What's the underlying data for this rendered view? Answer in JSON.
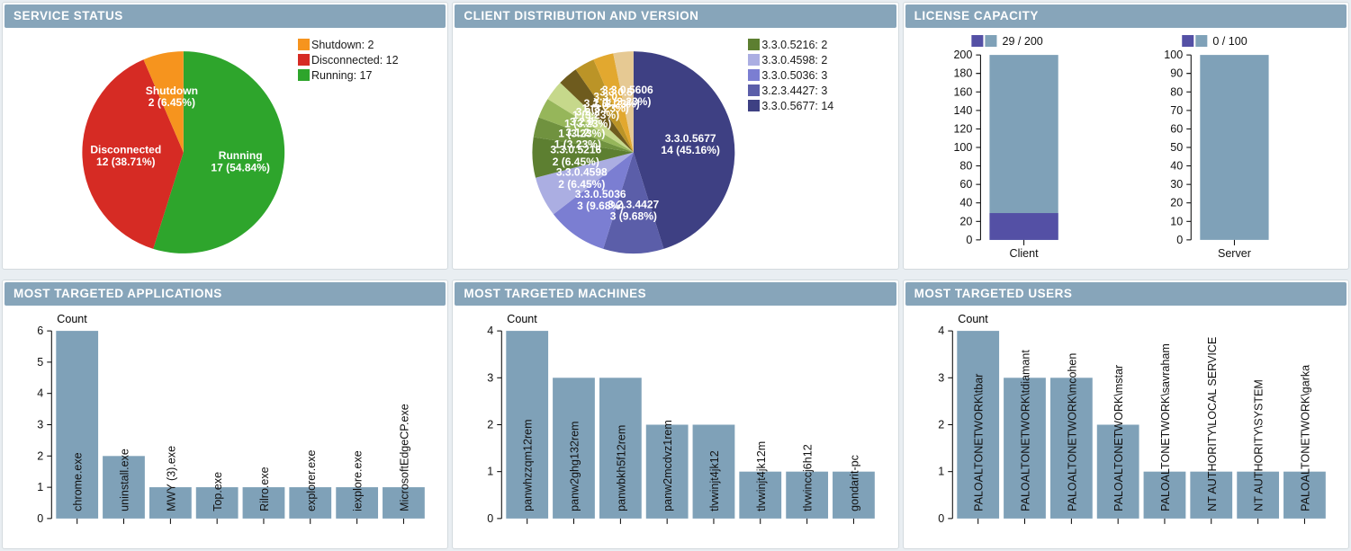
{
  "colors": {
    "header_bg": "#87a5ba",
    "steel_bar": "#7fa1b8",
    "used_purple": "#5450a5",
    "running_green": "#2ea52c",
    "disconnected_red": "#d62b24",
    "shutdown_orange": "#f6941e"
  },
  "chart_data": [
    {
      "panel": "service-status",
      "type": "pie",
      "title": "SERVICE STATUS",
      "legend_position": "top-right",
      "slices": [
        {
          "label": "Running",
          "value": 17,
          "pct": "54.84%",
          "color": "#2ea52c"
        },
        {
          "label": "Disconnected",
          "value": 12,
          "pct": "38.71%",
          "color": "#d62b24"
        },
        {
          "label": "Shutdown",
          "value": 2,
          "pct": "6.45%",
          "color": "#f6941e"
        }
      ],
      "legend": [
        {
          "label": "Shutdown",
          "value": 2,
          "color": "#f6941e"
        },
        {
          "label": "Disconnected",
          "value": 12,
          "color": "#d62b24"
        },
        {
          "label": "Running",
          "value": 17,
          "color": "#2ea52c"
        }
      ]
    },
    {
      "panel": "client-distribution-and-version",
      "type": "pie",
      "title": "CLIENT DISTRIBUTION AND VERSION",
      "legend_position": "top-right",
      "slices": [
        {
          "label": "3.3.0.5677",
          "value": 14,
          "pct": "45.16%",
          "color": "#3e4083"
        },
        {
          "label": "3.2.3.4427",
          "value": 3,
          "pct": "9.68%",
          "color": "#5b5ea9"
        },
        {
          "label": "3.3.0.5036",
          "value": 3,
          "pct": "9.68%",
          "color": "#7b7ed2"
        },
        {
          "label": "3.3.0.4598",
          "value": 2,
          "pct": "6.45%",
          "color": "#abaee2"
        },
        {
          "label": "3.3.0.5216",
          "value": 2,
          "pct": "6.45%",
          "color": "#5d7f31"
        },
        {
          "label": "3.1.2",
          "value": 1,
          "pct": "3.23%",
          "color": "#70923f"
        },
        {
          "label": "3.2.0",
          "value": 1,
          "pct": "3.23%",
          "color": "#96b65a"
        },
        {
          "label": "3.2.2",
          "value": 1,
          "pct": "3.23%",
          "color": "#c6d88b"
        },
        {
          "label": "3.2.3",
          "value": 1,
          "pct": "3.23%",
          "color": "#6e5b1e"
        },
        {
          "label": "3.3.0",
          "value": 1,
          "pct": "3.23%",
          "color": "#bb9427"
        },
        {
          "label": "3.3.0.5",
          "value": 1,
          "pct": "3.23%",
          "color": "#e2a82f"
        },
        {
          "label": "3.3.0.5606",
          "value": 1,
          "pct": "3.23%",
          "color": "#e6c993"
        }
      ],
      "legend": [
        {
          "label": "3.3.0.5216",
          "value": 2,
          "color": "#5d7f31"
        },
        {
          "label": "3.3.0.4598",
          "value": 2,
          "color": "#abaee2"
        },
        {
          "label": "3.3.0.5036",
          "value": 3,
          "color": "#7b7ed2"
        },
        {
          "label": "3.2.3.4427",
          "value": 3,
          "color": "#5b5ea9"
        },
        {
          "label": "3.3.0.5677",
          "value": 14,
          "color": "#3e4083"
        }
      ]
    },
    {
      "panel": "license-capacity",
      "type": "capacity",
      "title": "LICENSE CAPACITY",
      "colors": {
        "used": "#5450a5",
        "capacity": "#7fa1b8"
      },
      "groups": [
        {
          "label": "Client",
          "used": 29,
          "capacity": 200,
          "legend": "29 / 200",
          "ymax": 200,
          "ystep": 20
        },
        {
          "label": "Server",
          "used": 0,
          "capacity": 100,
          "legend": "0 / 100",
          "ymax": 100,
          "ystep": 10
        }
      ]
    },
    {
      "panel": "most-targeted-applications",
      "type": "bar",
      "title": "MOST TARGETED APPLICATIONS",
      "ylabel": "Count",
      "ymax": 6,
      "yticks": [
        0,
        1,
        2,
        3,
        4,
        5,
        6
      ],
      "bar_color": "#7fa1b8",
      "categories": [
        "chrome.exe",
        "uninstall.exe",
        "MWY (3).exe",
        "Top.exe",
        "Rilro.exe",
        "explorer.exe",
        "iexplore.exe",
        "MicrosoftEdgeCP.exe"
      ],
      "values": [
        6,
        2,
        1,
        1,
        1,
        1,
        1,
        1
      ]
    },
    {
      "panel": "most-targeted-machines",
      "type": "bar",
      "title": "MOST TARGETED MACHINES",
      "ylabel": "Count",
      "ymax": 4,
      "yticks": [
        0,
        1,
        2,
        3,
        4
      ],
      "bar_color": "#7fa1b8",
      "categories": [
        "panwhzzqm12rem",
        "panw2ghg132rem",
        "panwbkh5f12rem",
        "panw2mcdvz1rem",
        "tlvwinjt4jk12",
        "tlvwinjt4jk12m",
        "tlvwinccj6h12",
        "gondarit-pc"
      ],
      "values": [
        4,
        3,
        3,
        2,
        2,
        1,
        1,
        1
      ]
    },
    {
      "panel": "most-targeted-users",
      "type": "bar",
      "title": "MOST TARGETED USERS",
      "ylabel": "Count",
      "ymax": 4,
      "yticks": [
        0,
        1,
        2,
        3,
        4
      ],
      "bar_color": "#7fa1b8",
      "categories": [
        "PALOALTONETWORK\\tbar",
        "PALOALTONETWORK\\tdiamant",
        "PALOALTONETWORK\\mcohen",
        "PALOALTONETWORK\\mstar",
        "PALOALTONETWORK\\savraham",
        "NT AUTHORITY\\LOCAL SERVICE",
        "NT AUTHORITY\\SYSTEM",
        "PALOALTONETWORK\\garka"
      ],
      "values": [
        4,
        3,
        3,
        2,
        1,
        1,
        1,
        1
      ]
    }
  ]
}
